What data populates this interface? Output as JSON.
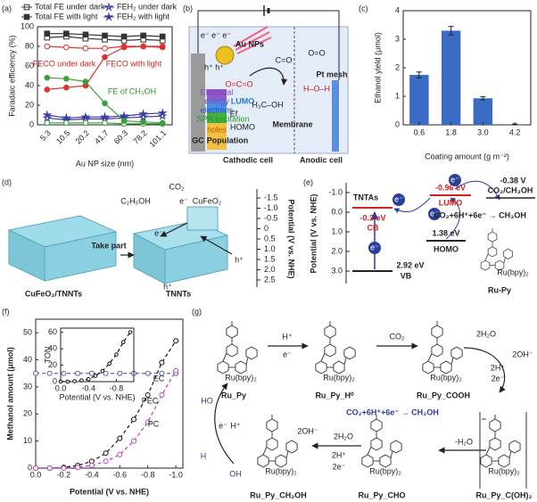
{
  "panel_labels": [
    "(a)",
    "(b)",
    "(c)",
    "(d)",
    "(e)",
    "(f)",
    "(g)"
  ],
  "chart_data": [
    {
      "type": "line",
      "xlabel": "Au NP size (nm)",
      "ylabel": "Faradaic efficiency (%)",
      "categories": [
        "5.3",
        "10.5",
        "20.2",
        "41.7",
        "60.3",
        "78.2",
        "101.1"
      ],
      "ylim": [
        0,
        100
      ],
      "yticks": [
        0,
        20,
        40,
        60,
        80,
        100
      ],
      "series": [
        {
          "name": "Total FE under dark",
          "color": "#333333",
          "marker": "open-square",
          "values": [
            89,
            90,
            88,
            87,
            86,
            87,
            86
          ]
        },
        {
          "name": "Total FE with light",
          "color": "#333333",
          "marker": "square",
          "values": [
            93,
            93,
            92,
            91,
            90,
            91,
            90
          ]
        },
        {
          "name": "FEH₂ under dark",
          "color": "#3a3aa0",
          "marker": "open-star",
          "values": [
            7,
            5,
            6,
            6,
            7,
            8,
            9
          ]
        },
        {
          "name": "FEH₂ with light",
          "color": "#3a3aa0",
          "marker": "star",
          "values": [
            10,
            7,
            8,
            8,
            9,
            11,
            12
          ]
        },
        {
          "color": "#e03030",
          "marker": "open-circle",
          "values": [
            80,
            79,
            78,
            78,
            80,
            80,
            79
          ]
        },
        {
          "color": "#e03030",
          "marker": "circle",
          "values": [
            36,
            38,
            40,
            69,
            79,
            80,
            80
          ]
        },
        {
          "color": "#3aa03a",
          "marker": "open-circle",
          "values": [
            2,
            2,
            2,
            2,
            1,
            1,
            1
          ]
        },
        {
          "color": "#3aa03a",
          "marker": "circle",
          "values": [
            48,
            47,
            44,
            22,
            4,
            3,
            2
          ]
        }
      ],
      "annotations": [
        "FECO under dark",
        "FECO with light",
        "FE of CH₃OH"
      ]
    },
    {
      "type": "bar",
      "xlabel": "Coating amount (g m⁻²)",
      "ylabel": "Ethanol yield (μmol)",
      "categories": [
        "0.6",
        "1.8",
        "3.0",
        "4.2"
      ],
      "values": [
        1.75,
        3.3,
        0.93,
        0.02
      ],
      "errors": [
        0.1,
        0.15,
        0.06,
        0.01
      ],
      "color": "#3b6cc4",
      "ylim": [
        0,
        4
      ],
      "yticks": [
        0,
        1,
        2,
        3,
        4
      ]
    },
    {
      "type": "line",
      "xlabel": "Potential (V vs. NHE)",
      "ylabel": "Methanol amount (μmol)",
      "x": [
        0,
        -0.1,
        -0.2,
        -0.3,
        -0.4,
        -0.5,
        -0.6,
        -0.7,
        -0.8,
        -0.9,
        -1.0
      ],
      "xlim": [
        0,
        -1.05
      ],
      "xticks": [
        {
          "value": 0,
          "label": "0.0"
        },
        -0.2,
        -0.4,
        -0.6,
        -0.8,
        {
          "value": -1,
          "label": "-1.0"
        }
      ],
      "ylim": [
        0,
        55
      ],
      "yticks": [
        0,
        10,
        20,
        30,
        40,
        50
      ],
      "series": [
        {
          "name": "PEC",
          "color": "#111111",
          "values": [
            0,
            0,
            0.3,
            1,
            2.5,
            5.5,
            11,
            18,
            27,
            39,
            47
          ]
        },
        {
          "name": "EC",
          "color": "#4a5fa8",
          "values": [
            35,
            35,
            35,
            35,
            35,
            35,
            35,
            35,
            35,
            35,
            35
          ]
        },
        {
          "name": "PC",
          "color": "#c040c0",
          "values": [
            0,
            0,
            0,
            0.3,
            1,
            2.5,
            5,
            10,
            17,
            27,
            36
          ]
        }
      ],
      "inset": {
        "xlabel": "Potential (V vs. NHE)",
        "ylabel": "TON",
        "x": [
          0,
          -0.1,
          -0.2,
          -0.3,
          -0.4,
          -0.5,
          -0.6,
          -0.7,
          -0.8,
          -0.9,
          -1.0
        ],
        "values": [
          0,
          0,
          0.5,
          1.5,
          3,
          7,
          13,
          22,
          33,
          48,
          60
        ],
        "color": "#111111",
        "xlim": [
          0,
          -1.05
        ],
        "xticks": [
          {
            "value": 0,
            "label": "0.0"
          },
          -0.4,
          -0.8
        ],
        "ylim": [
          0,
          65
        ],
        "yticks": [
          0,
          20,
          40,
          60
        ]
      }
    }
  ],
  "panel_b": {
    "au_nps": "Au NPs",
    "electrons_top": "e⁻ e⁻ e⁻",
    "holes_top": "h⁺ h⁺",
    "co": "C=O",
    "co2": "O=C=O",
    "lumo": "LUMO",
    "homo": "HOMO",
    "ef": "Ef",
    "electrical": "Electrical",
    "energy": "energy",
    "electrons": "electrons",
    "spr": "SPR excitation",
    "holes": "holes",
    "gc": "GC",
    "population": "Population",
    "cathodic": "Cathodic cell",
    "membrane": "Membrane",
    "anodic": "Anodic cell",
    "pt_mesh": "Pt mesh",
    "o2": "O=O",
    "methanol": "H₃C–OH",
    "water": "H–O–H"
  },
  "panel_d": {
    "co2": "CO₂",
    "ethanol": "C₂H₅OH",
    "e1": "e⁻",
    "cufeo2": "CuFeO₂",
    "e2": "e⁻",
    "h1": "h⁺",
    "take_part": "Take part",
    "composite": "CuFeO₂/TNNTs",
    "tnnts": "TNNTs",
    "h2": "h⁺",
    "axis_label": "Potential (V vs. NHE)",
    "axis_ticks": [
      "-1.5",
      "-1.0",
      "-0.5",
      "0",
      "0.5",
      "1.0",
      "1.5",
      "2.0",
      "2.5"
    ]
  },
  "panel_e": {
    "axis_label": "Potential (V vs. NHE)",
    "axis_ticks": [
      "-1.0",
      "0.0",
      "1.0",
      "2.0",
      "3.0"
    ],
    "tntas": "TNTAs",
    "cb_value": "-0.3 eV",
    "cb": "CB",
    "vb_value": "2.92 eV",
    "vb": "VB",
    "lumo_value": "-0.96 eV",
    "lumo": "LUMO",
    "homo_value": "1.38 eV",
    "homo": "HOMO",
    "redox_value": "-0.38 V",
    "redox_couple": "CO₂/CH₃OH",
    "reaction": "CO₂+6H⁺+6e⁻ → CH₃OH",
    "electron": "e⁻",
    "complex": "Ru(bpy)₂",
    "name": "Ru-Py"
  },
  "panel_g": {
    "ru_py": "Ru_Py",
    "h_plus": "H⁺",
    "e_minus": "e⁻",
    "ru_py_h0": "Ru_Py_H⁰",
    "co2": "CO₂",
    "ru_py_cooh": "Ru_Py_COOH",
    "water2": "2H₂O",
    "proton2": "2H⁺",
    "electron2": "2e⁻",
    "hydroxide2": "2OH⁻",
    "reaction": "CO₂+6H⁺+6e⁻ → CH₃OH",
    "minus_water": "-H₂O",
    "ru_py_coh2": "Ru_Py_C(OH)₂",
    "ru_py_cho": "Ru_Py_CHO",
    "ru_py_ch2oh": "Ru_Py_CH₂OH",
    "complex": "Ru(bpy)₂",
    "ho": "HO",
    "h": "H",
    "oh": "OH"
  }
}
